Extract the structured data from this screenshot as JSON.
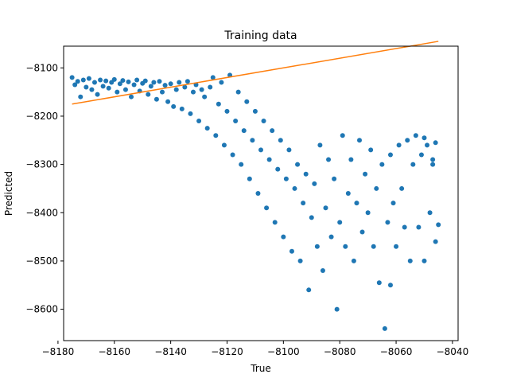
{
  "chart_data": {
    "type": "scatter",
    "title": "Training data",
    "xlabel": "True",
    "ylabel": "Predicted",
    "xlim": [
      -8178,
      -8038
    ],
    "ylim": [
      -8665,
      -8055
    ],
    "xticks": [
      -8180,
      -8160,
      -8140,
      -8120,
      -8100,
      -8080,
      -8060,
      -8040
    ],
    "yticks": [
      -8100,
      -8200,
      -8300,
      -8400,
      -8500,
      -8600
    ],
    "grid": false,
    "legend": "none",
    "colors": {
      "points": "#1f77b4",
      "fit_line": "#ff7f0e"
    },
    "series": [
      {
        "kind": "points",
        "points": [
          [
            -8175,
            -8120
          ],
          [
            -8174,
            -8135
          ],
          [
            -8173,
            -8128
          ],
          [
            -8172,
            -8160
          ],
          [
            -8171,
            -8125
          ],
          [
            -8170,
            -8140
          ],
          [
            -8169,
            -8122
          ],
          [
            -8168,
            -8145
          ],
          [
            -8167,
            -8130
          ],
          [
            -8166,
            -8155
          ],
          [
            -8165,
            -8125
          ],
          [
            -8164,
            -8138
          ],
          [
            -8163,
            -8127
          ],
          [
            -8162,
            -8142
          ],
          [
            -8161,
            -8130
          ],
          [
            -8160,
            -8124
          ],
          [
            -8159,
            -8150
          ],
          [
            -8158,
            -8133
          ],
          [
            -8157,
            -8126
          ],
          [
            -8156,
            -8145
          ],
          [
            -8155,
            -8129
          ],
          [
            -8154,
            -8160
          ],
          [
            -8153,
            -8135
          ],
          [
            -8152,
            -8125
          ],
          [
            -8151,
            -8148
          ],
          [
            -8150,
            -8132
          ],
          [
            -8149,
            -8127
          ],
          [
            -8148,
            -8155
          ],
          [
            -8147,
            -8138
          ],
          [
            -8146,
            -8130
          ],
          [
            -8145,
            -8165
          ],
          [
            -8144,
            -8128
          ],
          [
            -8143,
            -8150
          ],
          [
            -8142,
            -8136
          ],
          [
            -8141,
            -8170
          ],
          [
            -8140,
            -8133
          ],
          [
            -8139,
            -8180
          ],
          [
            -8138,
            -8145
          ],
          [
            -8137,
            -8130
          ],
          [
            -8136,
            -8185
          ],
          [
            -8135,
            -8140
          ],
          [
            -8134,
            -8128
          ],
          [
            -8133,
            -8195
          ],
          [
            -8132,
            -8150
          ],
          [
            -8131,
            -8135
          ],
          [
            -8130,
            -8210
          ],
          [
            -8129,
            -8145
          ],
          [
            -8128,
            -8160
          ],
          [
            -8127,
            -8225
          ],
          [
            -8126,
            -8140
          ],
          [
            -8125,
            -8120
          ],
          [
            -8124,
            -8240
          ],
          [
            -8123,
            -8175
          ],
          [
            -8122,
            -8130
          ],
          [
            -8121,
            -8260
          ],
          [
            -8120,
            -8190
          ],
          [
            -8119,
            -8115
          ],
          [
            -8118,
            -8280
          ],
          [
            -8117,
            -8210
          ],
          [
            -8116,
            -8150
          ],
          [
            -8115,
            -8300
          ],
          [
            -8114,
            -8230
          ],
          [
            -8113,
            -8170
          ],
          [
            -8112,
            -8330
          ],
          [
            -8111,
            -8250
          ],
          [
            -8110,
            -8190
          ],
          [
            -8109,
            -8360
          ],
          [
            -8108,
            -8270
          ],
          [
            -8107,
            -8210
          ],
          [
            -8106,
            -8390
          ],
          [
            -8105,
            -8290
          ],
          [
            -8104,
            -8230
          ],
          [
            -8103,
            -8420
          ],
          [
            -8102,
            -8310
          ],
          [
            -8101,
            -8250
          ],
          [
            -8100,
            -8450
          ],
          [
            -8099,
            -8330
          ],
          [
            -8098,
            -8270
          ],
          [
            -8097,
            -8480
          ],
          [
            -8096,
            -8350
          ],
          [
            -8095,
            -8300
          ],
          [
            -8094,
            -8500
          ],
          [
            -8093,
            -8380
          ],
          [
            -8092,
            -8320
          ],
          [
            -8091,
            -8560
          ],
          [
            -8090,
            -8410
          ],
          [
            -8089,
            -8340
          ],
          [
            -8088,
            -8470
          ],
          [
            -8087,
            -8260
          ],
          [
            -8086,
            -8520
          ],
          [
            -8085,
            -8390
          ],
          [
            -8084,
            -8290
          ],
          [
            -8083,
            -8450
          ],
          [
            -8082,
            -8330
          ],
          [
            -8081,
            -8600
          ],
          [
            -8080,
            -8420
          ],
          [
            -8079,
            -8240
          ],
          [
            -8078,
            -8470
          ],
          [
            -8077,
            -8360
          ],
          [
            -8076,
            -8290
          ],
          [
            -8075,
            -8500
          ],
          [
            -8074,
            -8380
          ],
          [
            -8073,
            -8250
          ],
          [
            -8072,
            -8440
          ],
          [
            -8071,
            -8320
          ],
          [
            -8070,
            -8400
          ],
          [
            -8069,
            -8270
          ],
          [
            -8068,
            -8470
          ],
          [
            -8067,
            -8350
          ],
          [
            -8066,
            -8545
          ],
          [
            -8065,
            -8300
          ],
          [
            -8064,
            -8640
          ],
          [
            -8063,
            -8420
          ],
          [
            -8062,
            -8280
          ],
          [
            -8061,
            -8380
          ],
          [
            -8060,
            -8470
          ],
          [
            -8059,
            -8260
          ],
          [
            -8058,
            -8350
          ],
          [
            -8057,
            -8430
          ],
          [
            -8056,
            -8250
          ],
          [
            -8055,
            -8500
          ],
          [
            -8054,
            -8300
          ],
          [
            -8053,
            -8240
          ],
          [
            -8052,
            -8430
          ],
          [
            -8051,
            -8280
          ],
          [
            -8050,
            -8500
          ],
          [
            -8049,
            -8260
          ],
          [
            -8048,
            -8400
          ],
          [
            -8047,
            -8300
          ],
          [
            -8046,
            -8460
          ],
          [
            -8045,
            -8425
          ],
          [
            -8046,
            -8255
          ],
          [
            -8047,
            -8290
          ],
          [
            -8050,
            -8245
          ],
          [
            -8062,
            -8550
          ]
        ]
      },
      {
        "kind": "line",
        "points": [
          [
            -8175,
            -8175
          ],
          [
            -8045,
            -8045
          ]
        ]
      }
    ]
  }
}
